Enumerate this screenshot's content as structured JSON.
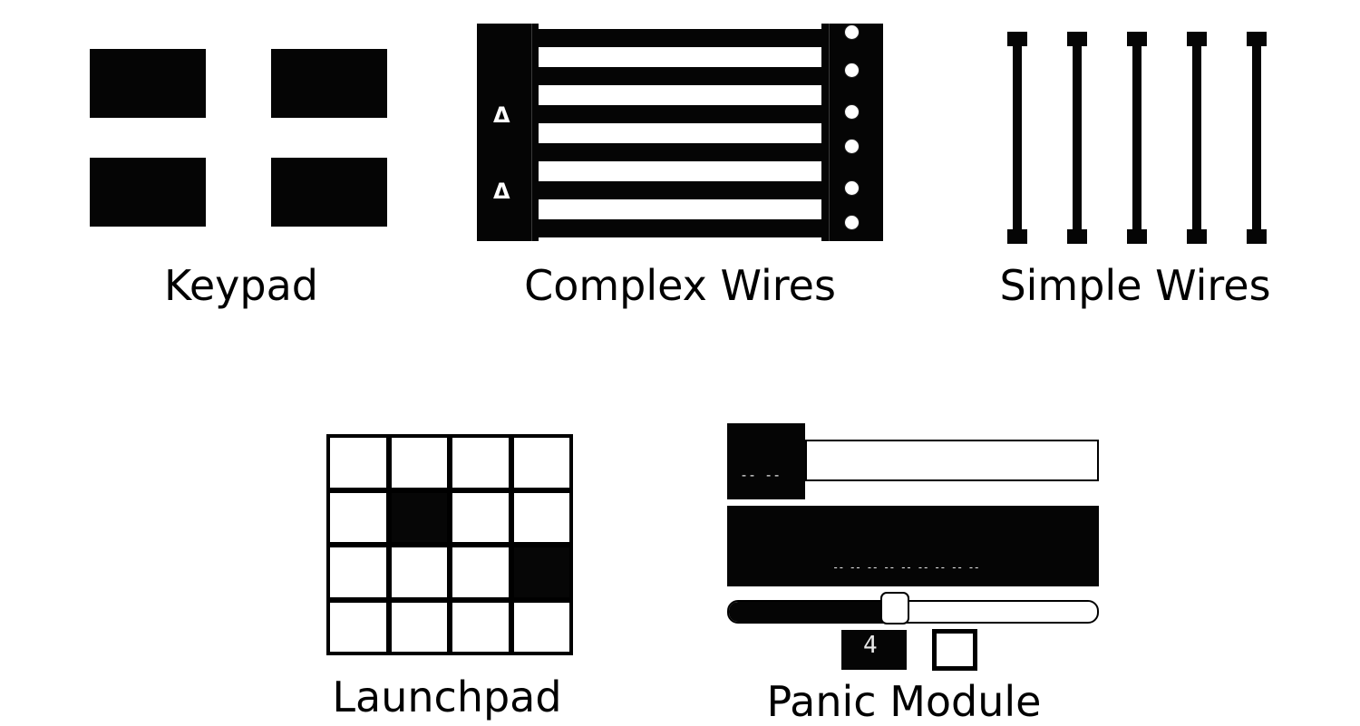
{
  "modules": [
    {
      "id": "keypad",
      "label": "Keypad"
    },
    {
      "id": "complex-wires",
      "label": "Complex Wires",
      "symbols": [
        "Δ",
        "Δ"
      ]
    },
    {
      "id": "simple-wires",
      "label": "Simple Wires"
    },
    {
      "id": "launchpad",
      "label": "Launchpad",
      "grid": [
        [
          0,
          0,
          0,
          0
        ],
        [
          0,
          1,
          0,
          0
        ],
        [
          0,
          0,
          0,
          1
        ],
        [
          0,
          0,
          0,
          0
        ]
      ]
    },
    {
      "id": "panic-module",
      "label": "Panic Module",
      "timer_text": "-- --",
      "display_text": "-- -- -- -- -- -- -- -- --",
      "slider_fraction": 0.45,
      "counter_value": "4"
    }
  ]
}
